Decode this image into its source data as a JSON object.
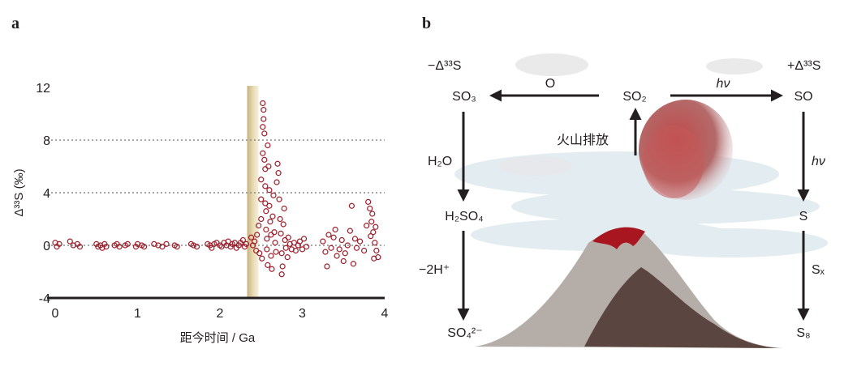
{
  "panel_a": {
    "label": "a"
  },
  "panel_b": {
    "label": "b",
    "neg_label": "−Δ³³S",
    "pos_label": "+Δ³³S",
    "species": {
      "so2": "SO₂",
      "so3": "SO₃",
      "so": "SO",
      "h2so4": "H₂SO₄",
      "so4": "SO₄²⁻",
      "s": "S",
      "s8": "S₈"
    },
    "arrows": {
      "oxygen": "O",
      "hv_top": "hν",
      "hv_right": "hν",
      "water": "H₂O",
      "minus2h": "−2H⁺",
      "sx": "Sₓ",
      "volcanic": "火山排放"
    },
    "colors": {
      "lava": "#a8161f",
      "mountain_light": "#b5ada8",
      "mountain_dark": "#5a4540",
      "cloud": "#dfe9ef"
    }
  },
  "chart_data": {
    "type": "scatter",
    "title": "",
    "xlabel": "距今时间 / Ga",
    "ylabel": "Δ³³S (‰)",
    "xlim": [
      0,
      4
    ],
    "ylim": [
      -4,
      12
    ],
    "xticks": [
      0,
      1,
      2,
      3,
      4
    ],
    "yticks": [
      -4,
      0,
      4,
      8,
      12
    ],
    "gridlines_y": [
      0,
      4,
      8
    ],
    "highlight_band": {
      "x_start": 2.33,
      "x_end": 2.47
    },
    "marker_color": "#9b1c28",
    "points": [
      [
        0.0,
        0.2
      ],
      [
        0.02,
        -0.1
      ],
      [
        0.05,
        0.1
      ],
      [
        0.18,
        0.3
      ],
      [
        0.22,
        0.0
      ],
      [
        0.27,
        0.1
      ],
      [
        0.3,
        -0.1
      ],
      [
        0.5,
        0.1
      ],
      [
        0.52,
        -0.1
      ],
      [
        0.55,
        0.0
      ],
      [
        0.57,
        -0.2
      ],
      [
        0.6,
        0.1
      ],
      [
        0.62,
        -0.1
      ],
      [
        0.72,
        0.0
      ],
      [
        0.75,
        0.1
      ],
      [
        0.78,
        -0.1
      ],
      [
        0.85,
        0.0
      ],
      [
        0.88,
        0.1
      ],
      [
        0.98,
        -0.1
      ],
      [
        1.0,
        0.1
      ],
      [
        1.05,
        0.0
      ],
      [
        1.08,
        -0.1
      ],
      [
        1.2,
        0.1
      ],
      [
        1.25,
        0.0
      ],
      [
        1.3,
        -0.1
      ],
      [
        1.35,
        0.1
      ],
      [
        1.45,
        0.0
      ],
      [
        1.48,
        -0.1
      ],
      [
        1.65,
        0.1
      ],
      [
        1.68,
        0.0
      ],
      [
        1.72,
        -0.1
      ],
      [
        1.85,
        0.1
      ],
      [
        1.88,
        0.0
      ],
      [
        1.9,
        -0.2
      ],
      [
        1.93,
        0.1
      ],
      [
        1.96,
        0.2
      ],
      [
        2.0,
        0.0
      ],
      [
        2.02,
        -0.1
      ],
      [
        2.05,
        0.2
      ],
      [
        2.08,
        0.0
      ],
      [
        2.1,
        0.3
      ],
      [
        2.13,
        -0.1
      ],
      [
        2.15,
        0.1
      ],
      [
        2.18,
        0.2
      ],
      [
        2.2,
        -0.2
      ],
      [
        2.23,
        0.0
      ],
      [
        2.25,
        0.2
      ],
      [
        2.28,
        0.4
      ],
      [
        2.3,
        -0.1
      ],
      [
        2.32,
        0.1
      ],
      [
        2.38,
        0.6
      ],
      [
        2.4,
        0.0
      ],
      [
        2.42,
        0.3
      ],
      [
        2.44,
        -0.4
      ],
      [
        2.45,
        0.8
      ],
      [
        2.47,
        1.5
      ],
      [
        2.48,
        -0.6
      ],
      [
        2.5,
        2.0
      ],
      [
        2.5,
        3.5
      ],
      [
        2.5,
        5.0
      ],
      [
        2.51,
        -1.0
      ],
      [
        2.52,
        7.0
      ],
      [
        2.52,
        9.0
      ],
      [
        2.52,
        10.8
      ],
      [
        2.53,
        10.3
      ],
      [
        2.53,
        9.6
      ],
      [
        2.54,
        8.5
      ],
      [
        2.54,
        6.5
      ],
      [
        2.55,
        5.8
      ],
      [
        2.55,
        4.5
      ],
      [
        2.55,
        3.2
      ],
      [
        2.56,
        2.6
      ],
      [
        2.56,
        1.2
      ],
      [
        2.57,
        0.5
      ],
      [
        2.57,
        -0.3
      ],
      [
        2.58,
        -1.5
      ],
      [
        2.58,
        7.6
      ],
      [
        2.59,
        6.0
      ],
      [
        2.6,
        4.2
      ],
      [
        2.6,
        3.0
      ],
      [
        2.61,
        1.8
      ],
      [
        2.62,
        0.8
      ],
      [
        2.62,
        -0.8
      ],
      [
        2.63,
        -1.8
      ],
      [
        2.64,
        2.2
      ],
      [
        2.65,
        3.8
      ],
      [
        2.66,
        1.0
      ],
      [
        2.67,
        0.2
      ],
      [
        2.68,
        -0.5
      ],
      [
        2.69,
        4.8
      ],
      [
        2.7,
        6.2
      ],
      [
        2.71,
        5.5
      ],
      [
        2.72,
        3.5
      ],
      [
        2.73,
        2.0
      ],
      [
        2.74,
        0.9
      ],
      [
        2.75,
        -0.6
      ],
      [
        2.75,
        -2.2
      ],
      [
        2.76,
        -1.6
      ],
      [
        2.77,
        1.6
      ],
      [
        2.78,
        2.8
      ],
      [
        2.79,
        0.4
      ],
      [
        2.8,
        -0.2
      ],
      [
        2.82,
        -0.9
      ],
      [
        2.83,
        0.6
      ],
      [
        2.85,
        0.1
      ],
      [
        2.87,
        -0.3
      ],
      [
        2.9,
        0.2
      ],
      [
        2.92,
        -0.4
      ],
      [
        2.95,
        0.0
      ],
      [
        2.97,
        0.3
      ],
      [
        3.0,
        -0.3
      ],
      [
        3.02,
        0.5
      ],
      [
        3.05,
        -0.1
      ],
      [
        3.25,
        0.3
      ],
      [
        3.28,
        -0.5
      ],
      [
        3.3,
        -1.6
      ],
      [
        3.32,
        0.8
      ],
      [
        3.35,
        -0.2
      ],
      [
        3.38,
        0.6
      ],
      [
        3.4,
        1.2
      ],
      [
        3.42,
        -0.8
      ],
      [
        3.45,
        -0.3
      ],
      [
        3.48,
        0.4
      ],
      [
        3.5,
        -1.2
      ],
      [
        3.52,
        -0.6
      ],
      [
        3.55,
        0.0
      ],
      [
        3.58,
        1.1
      ],
      [
        3.6,
        3.0
      ],
      [
        3.62,
        -1.4
      ],
      [
        3.64,
        0.5
      ],
      [
        3.66,
        -0.2
      ],
      [
        3.7,
        0.3
      ],
      [
        3.75,
        -0.4
      ],
      [
        3.78,
        1.5
      ],
      [
        3.8,
        3.3
      ],
      [
        3.82,
        2.8
      ],
      [
        3.84,
        1.8
      ],
      [
        3.86,
        1.0
      ],
      [
        3.88,
        0.2
      ],
      [
        3.9,
        -0.4
      ],
      [
        3.92,
        -0.9
      ],
      [
        3.85,
        2.4
      ],
      [
        3.87,
        -1.0
      ],
      [
        3.83,
        0.7
      ],
      [
        3.89,
        1.4
      ]
    ]
  }
}
